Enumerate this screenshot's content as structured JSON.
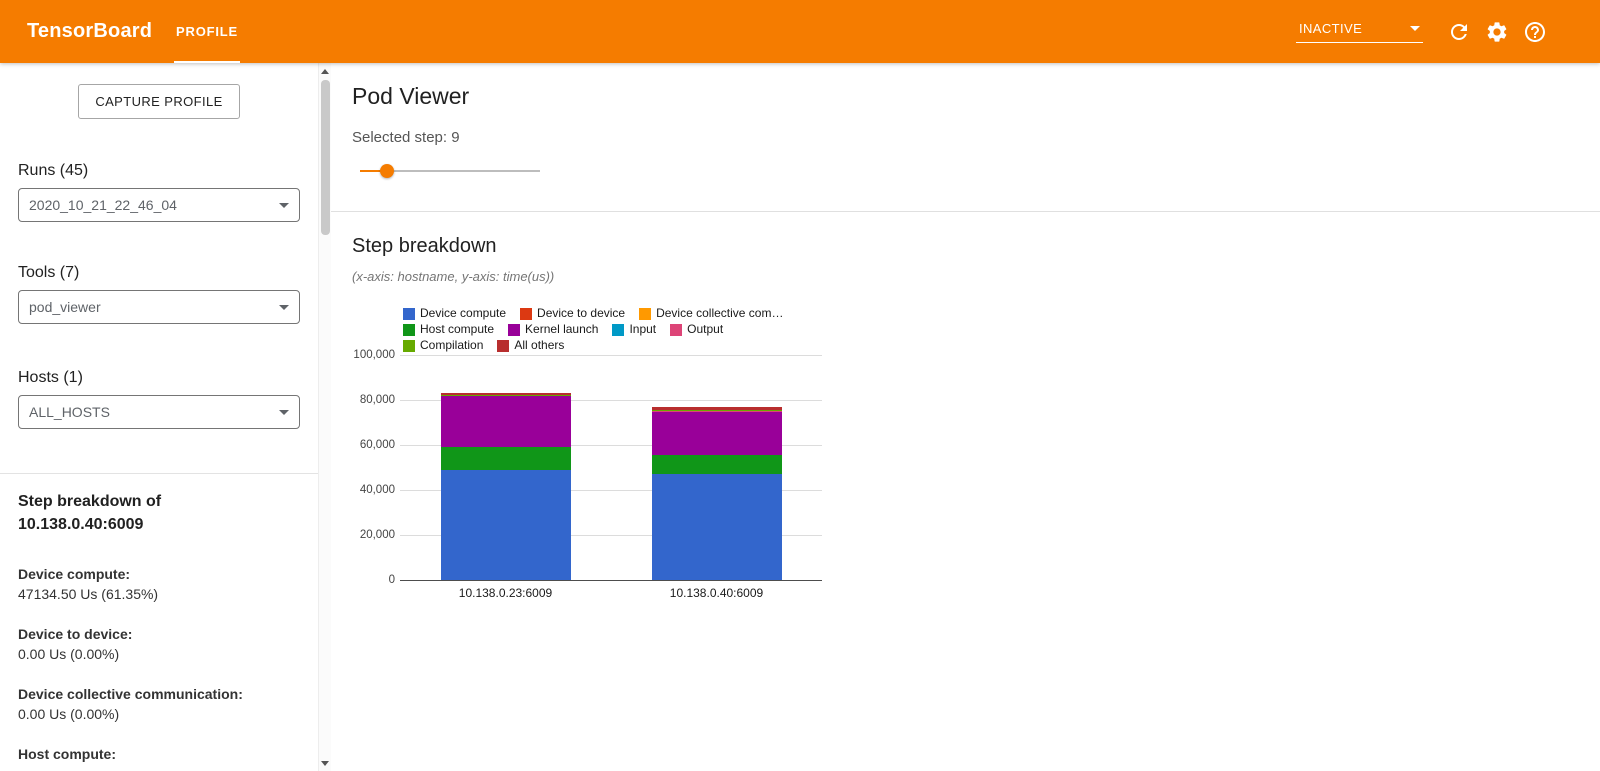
{
  "header": {
    "title": "TensorBoard",
    "tab": "PROFILE",
    "status_dropdown": "INACTIVE"
  },
  "sidebar": {
    "capture_button": "CAPTURE PROFILE",
    "runs_label": "Runs (45)",
    "runs_value": "2020_10_21_22_46_04",
    "tools_label": "Tools (7)",
    "tools_value": "pod_viewer",
    "hosts_label": "Hosts (1)",
    "hosts_value": "ALL_HOSTS",
    "breakdown_title_line1": "Step breakdown of",
    "breakdown_title_line2": "10.138.0.40:6009",
    "stats": [
      {
        "label": "Device compute:",
        "value": "47134.50 Us (61.35%)"
      },
      {
        "label": "Device to device:",
        "value": "0.00 Us (0.00%)"
      },
      {
        "label": "Device collective communication:",
        "value": "0.00 Us (0.00%)"
      },
      {
        "label": "Host compute:",
        "value": ""
      }
    ]
  },
  "main": {
    "title": "Pod Viewer",
    "selected_step_label": "Selected step: 9",
    "selected_step": 9,
    "slider_percent": 15,
    "section_title": "Step breakdown",
    "axis_note": "(x-axis: hostname, y-axis: time(us))"
  },
  "chart_data": {
    "type": "bar",
    "stacked": true,
    "title": "Step breakdown",
    "xlabel": "hostname",
    "ylabel": "time(us)",
    "categories": [
      "10.138.0.23:6009",
      "10.138.0.40:6009"
    ],
    "series": [
      {
        "name": "Device compute",
        "color": "#3366cc",
        "values": [
          48900,
          47134.5
        ]
      },
      {
        "name": "Device to device",
        "color": "#dc3912",
        "values": [
          0,
          0
        ]
      },
      {
        "name": "Device collective com…",
        "color": "#ff9900",
        "values": [
          0,
          0
        ]
      },
      {
        "name": "Host compute",
        "color": "#109618",
        "values": [
          10300,
          8600
        ]
      },
      {
        "name": "Kernel launch",
        "color": "#990099",
        "values": [
          22600,
          19000
        ]
      },
      {
        "name": "Input",
        "color": "#0099c6",
        "values": [
          0,
          200
        ]
      },
      {
        "name": "Output",
        "color": "#dd4477",
        "values": [
          0,
          300
        ]
      },
      {
        "name": "Compilation",
        "color": "#66aa00",
        "values": [
          600,
          500
        ]
      },
      {
        "name": "All others",
        "color": "#b82e2e",
        "values": [
          900,
          1100
        ]
      }
    ],
    "legend_rows": [
      [
        0,
        1,
        2
      ],
      [
        3,
        4,
        5,
        6
      ],
      [
        7,
        8
      ]
    ],
    "ylim": [
      0,
      100000
    ],
    "yticks": [
      "0",
      "20,000",
      "40,000",
      "60,000",
      "80,000",
      "100,000"
    ],
    "legend_position": "top",
    "grid": true
  },
  "colors": {
    "header_bg": "#f57c00",
    "accent": "#f57c00"
  }
}
